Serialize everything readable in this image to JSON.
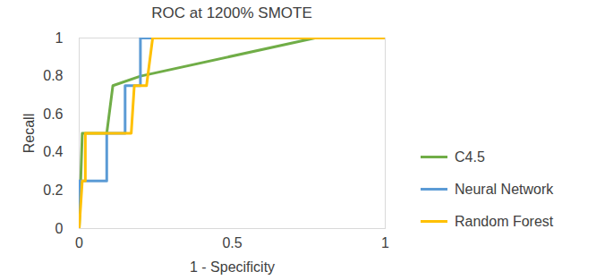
{
  "chart_data": {
    "type": "line",
    "title": "ROC at 1200% SMOTE",
    "xlabel": "1 - Specificity",
    "ylabel": "Recall",
    "xlim": [
      0,
      1
    ],
    "ylim": [
      0,
      1
    ],
    "xticks": [
      0,
      0.5,
      1
    ],
    "yticks": [
      0,
      0.2,
      0.4,
      0.6,
      0.8,
      1
    ],
    "grid": false,
    "legend": "right",
    "series": [
      {
        "name": "C4.5",
        "color": "#70ad47",
        "x": [
          0,
          0.01,
          0.09,
          0.11,
          0.2,
          0.77,
          1
        ],
        "values": [
          0,
          0.5,
          0.5,
          0.75,
          0.8,
          1,
          1
        ]
      },
      {
        "name": "Neural Network",
        "color": "#5b9bd5",
        "x": [
          0,
          0,
          0.09,
          0.09,
          0.15,
          0.15,
          0.2,
          0.2,
          1
        ],
        "values": [
          0,
          0.25,
          0.25,
          0.5,
          0.5,
          0.75,
          0.75,
          1,
          1
        ]
      },
      {
        "name": "Random Forest",
        "color": "#ffc000",
        "x": [
          0,
          0.01,
          0.02,
          0.02,
          0.17,
          0.18,
          0.22,
          0.24,
          1
        ],
        "values": [
          0,
          0.25,
          0.25,
          0.5,
          0.5,
          0.75,
          0.75,
          1,
          1
        ]
      }
    ]
  }
}
